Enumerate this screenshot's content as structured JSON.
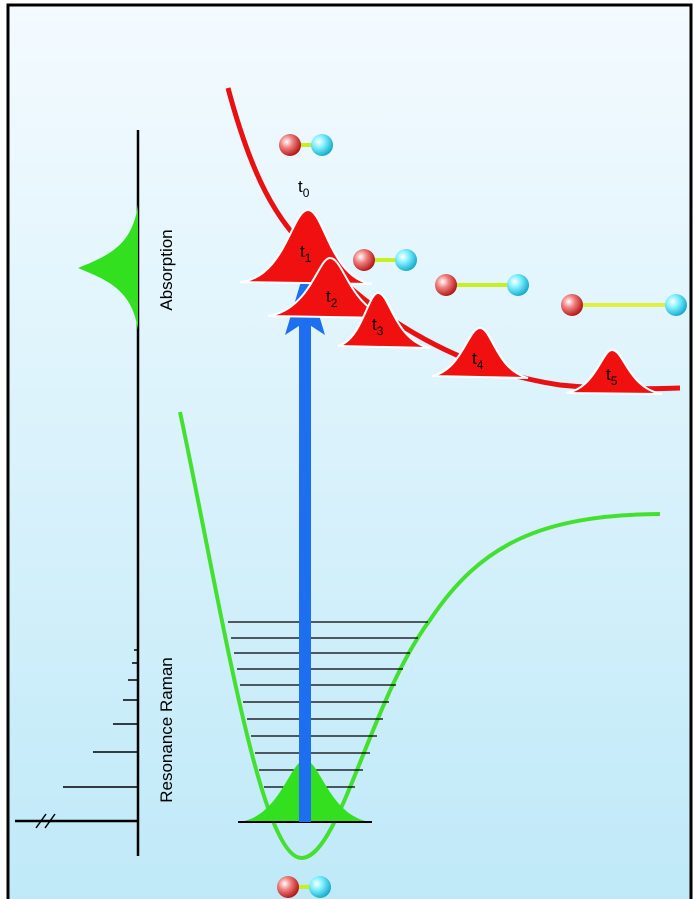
{
  "spectra": {
    "absorption": "Absorption",
    "raman": "Resonance Raman"
  },
  "time_labels": [
    {
      "letter": "t",
      "index": "0"
    },
    {
      "letter": "t",
      "index": "1"
    },
    {
      "letter": "t",
      "index": "2"
    },
    {
      "letter": "t",
      "index": "3"
    },
    {
      "letter": "t",
      "index": "4"
    },
    {
      "letter": "t",
      "index": "5"
    }
  ]
}
